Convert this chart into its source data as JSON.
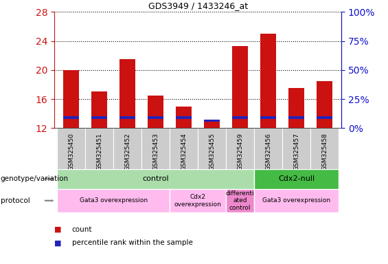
{
  "title": "GDS3949 / 1433246_at",
  "samples": [
    "GSM325450",
    "GSM325451",
    "GSM325452",
    "GSM325453",
    "GSM325454",
    "GSM325455",
    "GSM325459",
    "GSM325456",
    "GSM325457",
    "GSM325458"
  ],
  "count_values": [
    20.0,
    17.0,
    21.5,
    16.5,
    15.0,
    13.0,
    23.3,
    25.0,
    17.5,
    18.5
  ],
  "percentile_base": [
    13.3,
    13.3,
    13.3,
    13.3,
    13.3,
    12.9,
    13.3,
    13.3,
    13.3,
    13.3
  ],
  "blue_height": [
    0.35,
    0.35,
    0.35,
    0.35,
    0.35,
    0.28,
    0.35,
    0.35,
    0.35,
    0.35
  ],
  "bar_base": 12.0,
  "ylim_left": [
    12,
    28
  ],
  "ylim_right": [
    0,
    100
  ],
  "yticks_left": [
    12,
    16,
    20,
    24,
    28
  ],
  "yticks_right": [
    0,
    25,
    50,
    75,
    100
  ],
  "ytick_labels_right": [
    "0%",
    "25%",
    "50%",
    "75%",
    "100%"
  ],
  "bar_color_red": "#cc1111",
  "bar_color_blue": "#2222bb",
  "bar_width": 0.55,
  "tick_color_left": "#cc1111",
  "tick_color_right": "#1111cc",
  "genotype_groups": [
    {
      "label": "control",
      "start": 0,
      "end": 7,
      "color": "#aaddaa"
    },
    {
      "label": "Cdx2-null",
      "start": 7,
      "end": 10,
      "color": "#44bb44"
    }
  ],
  "protocol_groups": [
    {
      "label": "Gata3 overexpression",
      "start": 0,
      "end": 4,
      "color": "#ffbbee"
    },
    {
      "label": "Cdx2\noverexpression",
      "start": 4,
      "end": 6,
      "color": "#ffbbee"
    },
    {
      "label": "differenti\nated\ncontrol",
      "start": 6,
      "end": 7,
      "color": "#ee88cc"
    },
    {
      "label": "Gata3 overexpression",
      "start": 7,
      "end": 10,
      "color": "#ffbbee"
    }
  ],
  "legend_count_color": "#cc1111",
  "legend_percentile_color": "#2222bb",
  "fig_width": 5.65,
  "fig_height": 3.84,
  "dpi": 100
}
